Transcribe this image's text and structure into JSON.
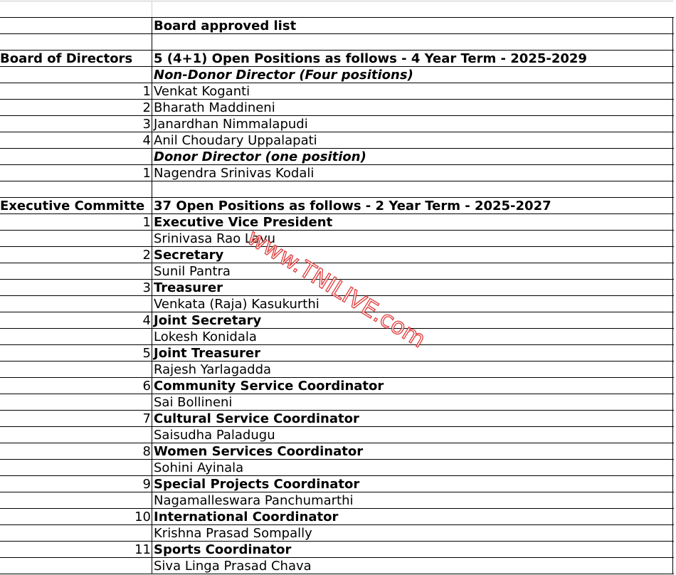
{
  "watermark": "www.TNILIVE.com",
  "colors": {
    "watermark": "#e03a3a",
    "grid": "#000000"
  },
  "rows": [
    {
      "a": "",
      "b": "Board approved list",
      "style": "b"
    },
    {
      "a": "",
      "b": "",
      "style": ""
    },
    {
      "a": "Board of Directors",
      "b": "5 (4+1) Open Positions as follows - 4 Year Term - 2025-2029",
      "style": "b",
      "aStyle": "b"
    },
    {
      "a": "",
      "b": "Non-Donor Director (Four positions)",
      "style": "bi"
    },
    {
      "a": "1",
      "b": "Venkat Koganti",
      "style": ""
    },
    {
      "a": "2",
      "b": "Bharath Maddineni",
      "style": ""
    },
    {
      "a": "3",
      "b": "Janardhan Nimmalapudi",
      "style": ""
    },
    {
      "a": "4",
      "b": "Anil Choudary Uppalapati",
      "style": ""
    },
    {
      "a": "",
      "b": "Donor Director (one position)",
      "style": "bi"
    },
    {
      "a": "1",
      "b": "Nagendra Srinivas Kodali",
      "style": ""
    },
    {
      "a": "",
      "b": "",
      "style": ""
    },
    {
      "a": "Executive Committe",
      "b": "37 Open Positions as follows - 2 Year Term - 2025-2027",
      "style": "b",
      "aStyle": "b"
    },
    {
      "a": "1",
      "b": "Executive Vice President",
      "style": "b"
    },
    {
      "a": "",
      "b": "Srinivasa Rao Lavu",
      "style": ""
    },
    {
      "a": "2",
      "b": "Secretary",
      "style": "b"
    },
    {
      "a": "",
      "b": "Sunil Pantra",
      "style": ""
    },
    {
      "a": "3",
      "b": "Treasurer",
      "style": "b"
    },
    {
      "a": "",
      "b": "Venkata (Raja) Kasukurthi",
      "style": ""
    },
    {
      "a": "4",
      "b": "Joint Secretary",
      "style": "b"
    },
    {
      "a": "",
      "b": "Lokesh Konidala",
      "style": ""
    },
    {
      "a": "5",
      "b": "Joint Treasurer",
      "style": "b"
    },
    {
      "a": "",
      "b": "Rajesh Yarlagadda",
      "style": ""
    },
    {
      "a": "6",
      "b": "Community Service Coordinator",
      "style": "b"
    },
    {
      "a": "",
      "b": "Sai Bollineni",
      "style": ""
    },
    {
      "a": "7",
      "b": "Cultural Service Coordinator",
      "style": "b"
    },
    {
      "a": "",
      "b": "Saisudha Paladugu",
      "style": ""
    },
    {
      "a": "8",
      "b": "Women Services Coordinator",
      "style": "b"
    },
    {
      "a": "",
      "b": "Sohini Ayinala",
      "style": ""
    },
    {
      "a": "9",
      "b": "Special Projects Coordinator",
      "style": "b"
    },
    {
      "a": "",
      "b": "Nagamalleswara Panchumarthi",
      "style": ""
    },
    {
      "a": "10",
      "b": "International Coordinator",
      "style": "b"
    },
    {
      "a": "",
      "b": "Krishna Prasad Sompally",
      "style": ""
    },
    {
      "a": "11",
      "b": "Sports Coordinator",
      "style": "b"
    },
    {
      "a": "",
      "b": "Siva Linga Prasad Chava",
      "style": ""
    }
  ]
}
